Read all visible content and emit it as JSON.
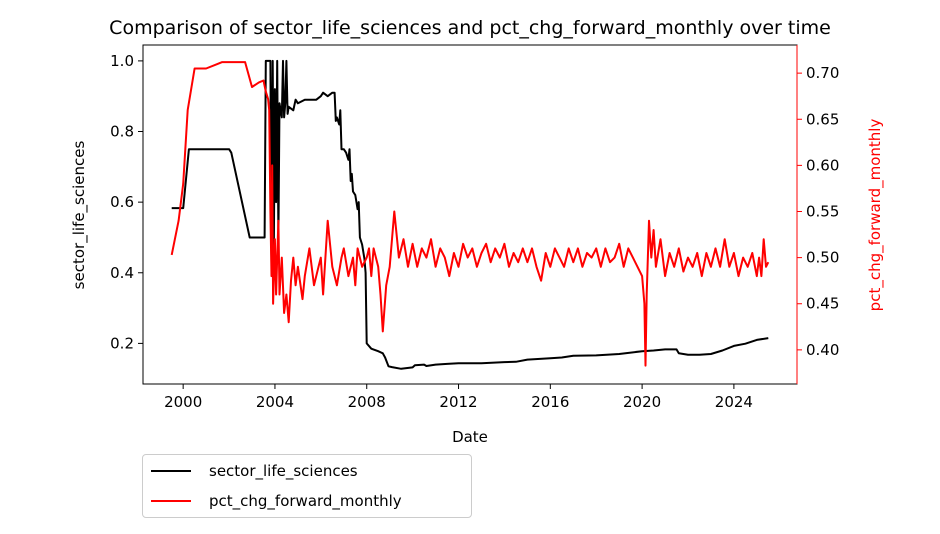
{
  "chart_data": {
    "type": "line",
    "title": "Comparison of sector_life_sciences and pct_chg_forward_monthly over time",
    "xlabel": "Date",
    "x_axis": {
      "min": 1998.25,
      "max": 2026.75,
      "ticks": [
        2000,
        2004,
        2008,
        2012,
        2016,
        2020,
        2024
      ],
      "tick_labels": [
        "2000",
        "2004",
        "2008",
        "2012",
        "2016",
        "2020",
        "2024"
      ]
    },
    "y_left": {
      "label": "sector_life_sciences",
      "color": "#000000",
      "min": 0.085,
      "max": 1.045,
      "ticks": [
        0.2,
        0.4,
        0.6,
        0.8,
        1.0
      ],
      "tick_labels": [
        "0.2",
        "0.4",
        "0.6",
        "0.8",
        "1.0"
      ]
    },
    "y_right": {
      "label": "pct_chg_forward_monthly",
      "color": "#ff0000",
      "min": 0.363,
      "max": 0.7305,
      "ticks": [
        0.4,
        0.45,
        0.5,
        0.55,
        0.6,
        0.65,
        0.7
      ],
      "tick_labels": [
        "0.40",
        "0.45",
        "0.50",
        "0.55",
        "0.60",
        "0.65",
        "0.70"
      ]
    },
    "legend": {
      "placement": "below-left",
      "entries": [
        "sector_life_sciences",
        "pct_chg_forward_monthly"
      ]
    },
    "grid": false,
    "series": [
      {
        "name": "sector_life_sciences",
        "axis": "left",
        "color": "#000000",
        "points": [
          [
            1999.5,
            0.583
          ],
          [
            2000.0,
            0.583
          ],
          [
            2000.25,
            0.75
          ],
          [
            2001.0,
            0.75
          ],
          [
            2002.0,
            0.75
          ],
          [
            2002.1,
            0.74
          ],
          [
            2002.9,
            0.5
          ],
          [
            2003.3,
            0.5
          ],
          [
            2003.55,
            0.5
          ],
          [
            2003.6,
            1.0
          ],
          [
            2003.7,
            1.0
          ],
          [
            2003.8,
            1.0
          ],
          [
            2003.85,
            0.43
          ],
          [
            2003.9,
            1.0
          ],
          [
            2003.95,
            0.46
          ],
          [
            2004.0,
            0.92
          ],
          [
            2004.05,
            0.6
          ],
          [
            2004.1,
            1.0
          ],
          [
            2004.15,
            0.5
          ],
          [
            2004.2,
            0.88
          ],
          [
            2004.3,
            0.84
          ],
          [
            2004.35,
            1.0
          ],
          [
            2004.4,
            0.84
          ],
          [
            2004.45,
            0.88
          ],
          [
            2004.5,
            1.0
          ],
          [
            2004.55,
            0.85
          ],
          [
            2004.6,
            0.87
          ],
          [
            2004.8,
            0.86
          ],
          [
            2004.9,
            0.89
          ],
          [
            2005.0,
            0.88
          ],
          [
            2005.3,
            0.89
          ],
          [
            2005.5,
            0.89
          ],
          [
            2005.8,
            0.89
          ],
          [
            2006.0,
            0.9
          ],
          [
            2006.1,
            0.91
          ],
          [
            2006.3,
            0.9
          ],
          [
            2006.5,
            0.91
          ],
          [
            2006.6,
            0.91
          ],
          [
            2006.65,
            0.83
          ],
          [
            2006.7,
            0.84
          ],
          [
            2006.8,
            0.82
          ],
          [
            2006.85,
            0.86
          ],
          [
            2006.9,
            0.75
          ],
          [
            2007.0,
            0.75
          ],
          [
            2007.1,
            0.74
          ],
          [
            2007.2,
            0.72
          ],
          [
            2007.25,
            0.75
          ],
          [
            2007.3,
            0.66
          ],
          [
            2007.35,
            0.68
          ],
          [
            2007.4,
            0.63
          ],
          [
            2007.5,
            0.62
          ],
          [
            2007.6,
            0.58
          ],
          [
            2007.65,
            0.6
          ],
          [
            2007.7,
            0.5
          ],
          [
            2007.8,
            0.48
          ],
          [
            2007.9,
            0.44
          ],
          [
            2007.95,
            0.4
          ],
          [
            2008.0,
            0.2
          ],
          [
            2008.2,
            0.185
          ],
          [
            2008.5,
            0.178
          ],
          [
            2008.7,
            0.172
          ],
          [
            2008.8,
            0.16
          ],
          [
            2008.95,
            0.135
          ],
          [
            2009.1,
            0.133
          ],
          [
            2009.5,
            0.128
          ],
          [
            2010.0,
            0.132
          ],
          [
            2010.1,
            0.138
          ],
          [
            2010.5,
            0.14
          ],
          [
            2010.6,
            0.136
          ],
          [
            2011.0,
            0.14
          ],
          [
            2011.5,
            0.142
          ],
          [
            2012.0,
            0.144
          ],
          [
            2013.0,
            0.144
          ],
          [
            2014.0,
            0.147
          ],
          [
            2014.5,
            0.148
          ],
          [
            2015.0,
            0.154
          ],
          [
            2016.0,
            0.158
          ],
          [
            2016.5,
            0.16
          ],
          [
            2017.0,
            0.165
          ],
          [
            2018.0,
            0.166
          ],
          [
            2019.0,
            0.17
          ],
          [
            2020.0,
            0.178
          ],
          [
            2020.5,
            0.18
          ],
          [
            2021.0,
            0.183
          ],
          [
            2021.5,
            0.183
          ],
          [
            2021.6,
            0.172
          ],
          [
            2022.0,
            0.168
          ],
          [
            2022.5,
            0.168
          ],
          [
            2023.0,
            0.17
          ],
          [
            2023.5,
            0.18
          ],
          [
            2024.0,
            0.193
          ],
          [
            2024.5,
            0.199
          ],
          [
            2025.0,
            0.21
          ],
          [
            2025.5,
            0.215
          ]
        ]
      },
      {
        "name": "pct_chg_forward_monthly",
        "axis": "right",
        "color": "#ff0000",
        "points": [
          [
            1999.5,
            0.503
          ],
          [
            1999.8,
            0.54
          ],
          [
            2000.0,
            0.58
          ],
          [
            2000.2,
            0.66
          ],
          [
            2000.5,
            0.705
          ],
          [
            2001.0,
            0.705
          ],
          [
            2001.5,
            0.71
          ],
          [
            2001.7,
            0.712
          ],
          [
            2002.0,
            0.712
          ],
          [
            2002.5,
            0.712
          ],
          [
            2002.7,
            0.712
          ],
          [
            2003.0,
            0.685
          ],
          [
            2003.3,
            0.69
          ],
          [
            2003.5,
            0.692
          ],
          [
            2003.6,
            0.68
          ],
          [
            2003.7,
            0.672
          ],
          [
            2003.75,
            0.66
          ],
          [
            2003.8,
            0.55
          ],
          [
            2003.85,
            0.48
          ],
          [
            2003.88,
            0.6
          ],
          [
            2003.92,
            0.45
          ],
          [
            2004.0,
            0.52
          ],
          [
            2004.05,
            0.46
          ],
          [
            2004.1,
            0.5
          ],
          [
            2004.15,
            0.54
          ],
          [
            2004.2,
            0.46
          ],
          [
            2004.3,
            0.5
          ],
          [
            2004.4,
            0.44
          ],
          [
            2004.5,
            0.46
          ],
          [
            2004.6,
            0.43
          ],
          [
            2004.7,
            0.475
          ],
          [
            2004.8,
            0.5
          ],
          [
            2004.9,
            0.47
          ],
          [
            2005.0,
            0.49
          ],
          [
            2005.2,
            0.455
          ],
          [
            2005.3,
            0.48
          ],
          [
            2005.5,
            0.51
          ],
          [
            2005.7,
            0.47
          ],
          [
            2005.9,
            0.49
          ],
          [
            2006.0,
            0.5
          ],
          [
            2006.1,
            0.46
          ],
          [
            2006.3,
            0.54
          ],
          [
            2006.5,
            0.49
          ],
          [
            2006.7,
            0.47
          ],
          [
            2006.9,
            0.5
          ],
          [
            2007.0,
            0.51
          ],
          [
            2007.2,
            0.48
          ],
          [
            2007.4,
            0.5
          ],
          [
            2007.5,
            0.47
          ],
          [
            2007.6,
            0.51
          ],
          [
            2007.8,
            0.49
          ],
          [
            2008.0,
            0.5
          ],
          [
            2008.1,
            0.51
          ],
          [
            2008.2,
            0.48
          ],
          [
            2008.3,
            0.51
          ],
          [
            2008.5,
            0.49
          ],
          [
            2008.6,
            0.46
          ],
          [
            2008.7,
            0.42
          ],
          [
            2008.85,
            0.47
          ],
          [
            2009.0,
            0.49
          ],
          [
            2009.2,
            0.55
          ],
          [
            2009.4,
            0.5
          ],
          [
            2009.6,
            0.52
          ],
          [
            2009.8,
            0.49
          ],
          [
            2010.0,
            0.515
          ],
          [
            2010.2,
            0.49
          ],
          [
            2010.4,
            0.51
          ],
          [
            2010.6,
            0.5
          ],
          [
            2010.8,
            0.52
          ],
          [
            2011.0,
            0.49
          ],
          [
            2011.2,
            0.51
          ],
          [
            2011.4,
            0.5
          ],
          [
            2011.6,
            0.48
          ],
          [
            2011.8,
            0.505
          ],
          [
            2012.0,
            0.49
          ],
          [
            2012.2,
            0.515
          ],
          [
            2012.4,
            0.5
          ],
          [
            2012.6,
            0.51
          ],
          [
            2012.8,
            0.49
          ],
          [
            2013.0,
            0.505
          ],
          [
            2013.2,
            0.515
          ],
          [
            2013.4,
            0.495
          ],
          [
            2013.6,
            0.51
          ],
          [
            2013.8,
            0.5
          ],
          [
            2014.0,
            0.515
          ],
          [
            2014.2,
            0.49
          ],
          [
            2014.4,
            0.505
          ],
          [
            2014.6,
            0.495
          ],
          [
            2014.8,
            0.51
          ],
          [
            2015.0,
            0.495
          ],
          [
            2015.2,
            0.51
          ],
          [
            2015.4,
            0.49
          ],
          [
            2015.6,
            0.475
          ],
          [
            2015.8,
            0.505
          ],
          [
            2016.0,
            0.49
          ],
          [
            2016.2,
            0.51
          ],
          [
            2016.4,
            0.5
          ],
          [
            2016.6,
            0.49
          ],
          [
            2016.8,
            0.51
          ],
          [
            2017.0,
            0.495
          ],
          [
            2017.2,
            0.51
          ],
          [
            2017.4,
            0.49
          ],
          [
            2017.6,
            0.505
          ],
          [
            2017.8,
            0.5
          ],
          [
            2018.0,
            0.51
          ],
          [
            2018.2,
            0.49
          ],
          [
            2018.4,
            0.51
          ],
          [
            2018.6,
            0.495
          ],
          [
            2018.8,
            0.5
          ],
          [
            2019.0,
            0.515
          ],
          [
            2019.2,
            0.49
          ],
          [
            2019.4,
            0.51
          ],
          [
            2019.6,
            0.5
          ],
          [
            2019.8,
            0.49
          ],
          [
            2020.0,
            0.48
          ],
          [
            2020.1,
            0.45
          ],
          [
            2020.15,
            0.383
          ],
          [
            2020.2,
            0.46
          ],
          [
            2020.3,
            0.54
          ],
          [
            2020.4,
            0.5
          ],
          [
            2020.5,
            0.53
          ],
          [
            2020.6,
            0.49
          ],
          [
            2020.8,
            0.52
          ],
          [
            2021.0,
            0.48
          ],
          [
            2021.2,
            0.505
          ],
          [
            2021.4,
            0.49
          ],
          [
            2021.6,
            0.51
          ],
          [
            2021.8,
            0.485
          ],
          [
            2022.0,
            0.5
          ],
          [
            2022.2,
            0.49
          ],
          [
            2022.4,
            0.505
          ],
          [
            2022.6,
            0.48
          ],
          [
            2022.8,
            0.505
          ],
          [
            2023.0,
            0.49
          ],
          [
            2023.2,
            0.51
          ],
          [
            2023.4,
            0.49
          ],
          [
            2023.6,
            0.52
          ],
          [
            2023.8,
            0.49
          ],
          [
            2024.0,
            0.505
          ],
          [
            2024.2,
            0.48
          ],
          [
            2024.4,
            0.5
          ],
          [
            2024.6,
            0.49
          ],
          [
            2024.8,
            0.505
          ],
          [
            2025.0,
            0.48
          ],
          [
            2025.1,
            0.5
          ],
          [
            2025.2,
            0.48
          ],
          [
            2025.3,
            0.52
          ],
          [
            2025.4,
            0.49
          ],
          [
            2025.5,
            0.495
          ]
        ]
      }
    ]
  }
}
